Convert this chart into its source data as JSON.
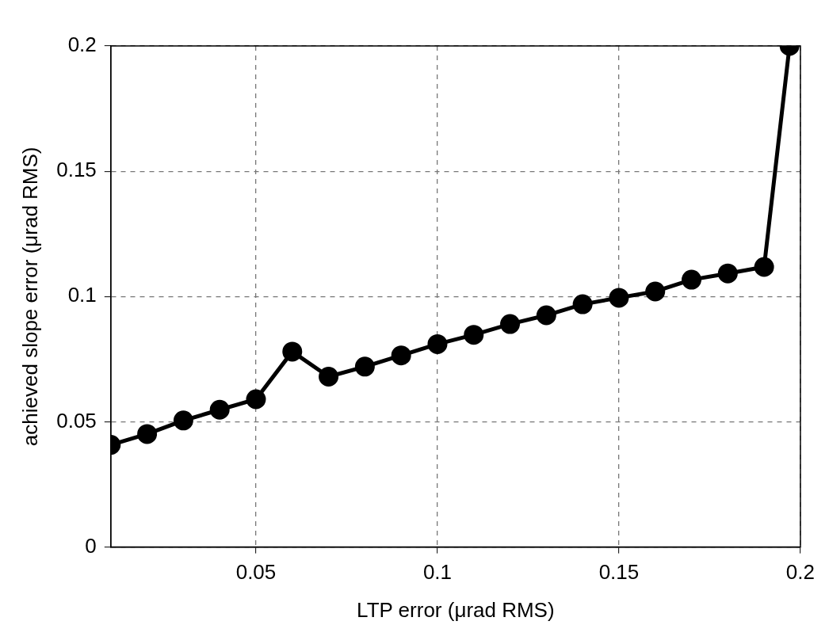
{
  "chart_data": {
    "type": "line",
    "xlabel": "LTP error (μrad RMS)",
    "ylabel": "achieved slope error (μrad RMS)",
    "x": [
      0.01,
      0.02,
      0.03,
      0.04,
      0.05,
      0.06,
      0.07,
      0.08,
      0.09,
      0.1,
      0.11,
      0.12,
      0.13,
      0.14,
      0.15,
      0.16,
      0.17,
      0.18,
      0.19,
      0.197
    ],
    "series": [
      {
        "color": "#000000",
        "values": [
          0.0408,
          0.0451,
          0.0505,
          0.0548,
          0.059,
          0.078,
          0.068,
          0.072,
          0.0765,
          0.081,
          0.0847,
          0.089,
          0.0925,
          0.0969,
          0.0995,
          0.102,
          0.1067,
          0.1092,
          0.1118,
          0.2
        ]
      }
    ],
    "xlim": [
      0.01,
      0.2
    ],
    "xticks": [
      0.05,
      0.1,
      0.15,
      0.2
    ],
    "ylim": [
      0,
      0.2
    ],
    "yticks": [
      0,
      0.05,
      0.1,
      0.15,
      0.2
    ],
    "grid": true,
    "legend": false,
    "marker": "circle",
    "line_style": "solid"
  }
}
